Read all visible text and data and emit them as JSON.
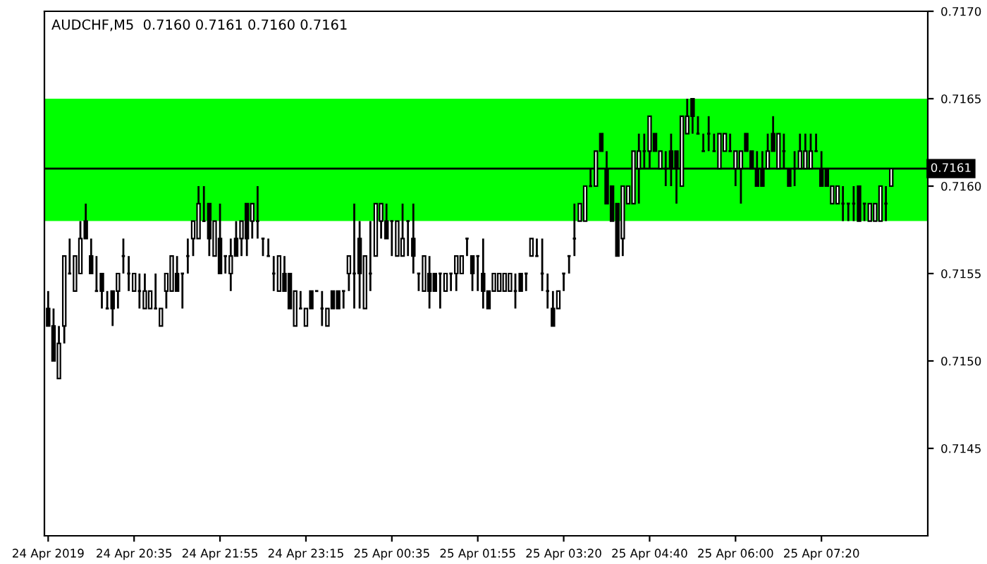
{
  "chart_data": {
    "type": "candlestick",
    "title": "AUDCHF,M5  0.7160 0.7161 0.7160 0.7161",
    "categories": [
      "24 Apr 2019",
      null,
      null,
      null,
      null,
      null,
      null,
      null,
      null,
      null,
      null,
      null,
      null,
      null,
      null,
      null,
      "24 Apr 20:35",
      null,
      null,
      null,
      null,
      null,
      null,
      null,
      null,
      null,
      null,
      null,
      null,
      null,
      null,
      null,
      "24 Apr 21:55",
      null,
      null,
      null,
      null,
      null,
      null,
      null,
      null,
      null,
      null,
      null,
      null,
      null,
      null,
      null,
      "24 Apr 23:15",
      null,
      null,
      null,
      null,
      null,
      null,
      null,
      null,
      null,
      null,
      null,
      null,
      null,
      null,
      null,
      "25 Apr 00:35",
      null,
      null,
      null,
      null,
      null,
      null,
      null,
      null,
      null,
      null,
      null,
      null,
      null,
      null,
      null,
      "25 Apr 01:55",
      null,
      null,
      null,
      null,
      null,
      null,
      null,
      null,
      null,
      null,
      null,
      null,
      null,
      null,
      null,
      "25 Apr 03:20",
      null,
      null,
      null,
      null,
      null,
      null,
      null,
      null,
      null,
      null,
      null,
      null,
      null,
      null,
      null,
      "25 Apr 04:40",
      null,
      null,
      null,
      null,
      null,
      null,
      null,
      null,
      null,
      null,
      null,
      null,
      null,
      null,
      null,
      "25 Apr 06:00",
      null,
      null,
      null,
      null,
      null,
      null,
      null,
      null,
      null,
      null,
      null,
      null,
      null,
      null,
      null,
      "25 Apr 07:20",
      null,
      null,
      null,
      null,
      null,
      null,
      null,
      null,
      null,
      null,
      null,
      null,
      null
    ],
    "ohlc": [
      [
        0.7153,
        0.7154,
        0.7152,
        0.7152
      ],
      [
        0.7152,
        0.7153,
        0.715,
        0.715
      ],
      [
        0.7149,
        0.7152,
        0.7149,
        0.7151
      ],
      [
        0.7152,
        0.7156,
        0.7151,
        0.7156
      ],
      [
        0.7155,
        0.7157,
        0.7155,
        0.7155
      ],
      [
        0.7154,
        0.7156,
        0.7154,
        0.7156
      ],
      [
        0.7155,
        0.7158,
        0.7155,
        0.7157
      ],
      [
        0.7158,
        0.7159,
        0.7157,
        0.7157
      ],
      [
        0.7156,
        0.7157,
        0.7155,
        0.7155
      ],
      [
        0.7154,
        0.7156,
        0.7154,
        0.7154
      ],
      [
        0.7155,
        0.7155,
        0.7153,
        0.7154
      ],
      [
        0.7153,
        0.7154,
        0.7153,
        0.7153
      ],
      [
        0.7154,
        0.7154,
        0.7152,
        0.7153
      ],
      [
        0.7154,
        0.7155,
        0.7153,
        0.7155
      ],
      [
        0.7156,
        0.7157,
        0.7155,
        0.7156
      ],
      [
        0.7155,
        0.7156,
        0.7154,
        0.7155
      ],
      [
        0.7154,
        0.7155,
        0.7154,
        0.7155
      ],
      [
        0.7154,
        0.7155,
        0.7153,
        0.7154
      ],
      [
        0.7153,
        0.7155,
        0.7153,
        0.7154
      ],
      [
        0.7153,
        0.7154,
        0.7153,
        0.7154
      ],
      [
        0.7153,
        0.7155,
        0.7153,
        0.7153
      ],
      [
        0.7152,
        0.7153,
        0.7152,
        0.7153
      ],
      [
        0.7154,
        0.7155,
        0.7153,
        0.7155
      ],
      [
        0.7154,
        0.7156,
        0.7154,
        0.7156
      ],
      [
        0.7155,
        0.7156,
        0.7154,
        0.7154
      ],
      [
        0.7155,
        0.7155,
        0.7153,
        0.7155
      ],
      [
        0.7156,
        0.7157,
        0.7155,
        0.7156
      ],
      [
        0.7157,
        0.7158,
        0.7156,
        0.7158
      ],
      [
        0.7157,
        0.716,
        0.7157,
        0.7159
      ],
      [
        0.7158,
        0.716,
        0.7158,
        0.7158
      ],
      [
        0.7159,
        0.7159,
        0.7156,
        0.7157
      ],
      [
        0.7156,
        0.7158,
        0.7156,
        0.7158
      ],
      [
        0.7157,
        0.7159,
        0.7155,
        0.7155
      ],
      [
        0.7156,
        0.7156,
        0.7155,
        0.7156
      ],
      [
        0.7155,
        0.7157,
        0.7154,
        0.7156
      ],
      [
        0.7157,
        0.7158,
        0.7156,
        0.7156
      ],
      [
        0.7157,
        0.7158,
        0.7156,
        0.7158
      ],
      [
        0.7159,
        0.7159,
        0.7156,
        0.7157
      ],
      [
        0.7158,
        0.7159,
        0.7157,
        0.7159
      ],
      [
        0.7158,
        0.716,
        0.7157,
        0.7158
      ],
      [
        0.7157,
        0.7157,
        0.7156,
        0.7157
      ],
      [
        0.7156,
        0.7157,
        0.7156,
        0.7156
      ],
      [
        0.7155,
        0.7156,
        0.7154,
        0.7155
      ],
      [
        0.7154,
        0.7156,
        0.7154,
        0.7156
      ],
      [
        0.7155,
        0.7156,
        0.7154,
        0.7154
      ],
      [
        0.7155,
        0.7155,
        0.7153,
        0.7153
      ],
      [
        0.7152,
        0.7154,
        0.7152,
        0.7154
      ],
      [
        0.7153,
        0.7154,
        0.7153,
        0.7153
      ],
      [
        0.7152,
        0.7153,
        0.7152,
        0.7153
      ],
      [
        0.7154,
        0.7154,
        0.7153,
        0.7153
      ],
      [
        0.7154,
        0.7154,
        0.7154,
        0.7154
      ],
      [
        0.7153,
        0.7154,
        0.7152,
        0.7153
      ],
      [
        0.7152,
        0.7153,
        0.7152,
        0.7153
      ],
      [
        0.7154,
        0.7154,
        0.7153,
        0.7153
      ],
      [
        0.7154,
        0.7154,
        0.7153,
        0.7153
      ],
      [
        0.7154,
        0.7154,
        0.7153,
        0.7154
      ],
      [
        0.7155,
        0.7156,
        0.7154,
        0.7156
      ],
      [
        0.7155,
        0.7159,
        0.7153,
        0.7155
      ],
      [
        0.7157,
        0.7158,
        0.7153,
        0.7155
      ],
      [
        0.7153,
        0.7156,
        0.7153,
        0.7156
      ],
      [
        0.7155,
        0.7158,
        0.7154,
        0.7155
      ],
      [
        0.7156,
        0.7159,
        0.7156,
        0.7159
      ],
      [
        0.7158,
        0.7159,
        0.7157,
        0.7159
      ],
      [
        0.7158,
        0.7159,
        0.7157,
        0.7157
      ],
      [
        0.7158,
        0.7158,
        0.7156,
        0.7158
      ],
      [
        0.7156,
        0.7158,
        0.7156,
        0.7158
      ],
      [
        0.7156,
        0.7159,
        0.7156,
        0.7157
      ],
      [
        0.7158,
        0.7158,
        0.7156,
        0.7158
      ],
      [
        0.7157,
        0.7159,
        0.7155,
        0.7156
      ],
      [
        0.7155,
        0.7155,
        0.7154,
        0.7155
      ],
      [
        0.7154,
        0.7156,
        0.7154,
        0.7156
      ],
      [
        0.7155,
        0.7156,
        0.7153,
        0.7154
      ],
      [
        0.7155,
        0.7155,
        0.7154,
        0.7154
      ],
      [
        0.7155,
        0.7155,
        0.7153,
        0.7155
      ],
      [
        0.7154,
        0.7155,
        0.7154,
        0.7155
      ],
      [
        0.7155,
        0.7155,
        0.7154,
        0.7155
      ],
      [
        0.7155,
        0.7156,
        0.7154,
        0.7156
      ],
      [
        0.7155,
        0.7156,
        0.7155,
        0.7156
      ],
      [
        0.7157,
        0.7157,
        0.7156,
        0.7157
      ],
      [
        0.7156,
        0.7156,
        0.7154,
        0.7155
      ],
      [
        0.7156,
        0.7156,
        0.7154,
        0.7156
      ],
      [
        0.7155,
        0.7157,
        0.7153,
        0.7154
      ],
      [
        0.7154,
        0.7154,
        0.7153,
        0.7153
      ],
      [
        0.7154,
        0.7155,
        0.7154,
        0.7155
      ],
      [
        0.7154,
        0.7155,
        0.7154,
        0.7155
      ],
      [
        0.7154,
        0.7155,
        0.7154,
        0.7155
      ],
      [
        0.7154,
        0.7155,
        0.7154,
        0.7155
      ],
      [
        0.7154,
        0.7155,
        0.7153,
        0.7154
      ],
      [
        0.7155,
        0.7155,
        0.7154,
        0.7154
      ],
      [
        0.7155,
        0.7155,
        0.7154,
        0.7155
      ],
      [
        0.7156,
        0.7157,
        0.7156,
        0.7157
      ],
      [
        0.7156,
        0.7157,
        0.7156,
        0.7156
      ],
      [
        0.7155,
        0.7157,
        0.7154,
        0.7155
      ],
      [
        0.7154,
        0.7155,
        0.7153,
        0.7154
      ],
      [
        0.7153,
        0.7154,
        0.7152,
        0.7152
      ],
      [
        0.7153,
        0.7154,
        0.7153,
        0.7154
      ],
      [
        0.7155,
        0.7155,
        0.7154,
        0.7155
      ],
      [
        0.7156,
        0.7156,
        0.7155,
        0.7156
      ],
      [
        0.7157,
        0.7159,
        0.7156,
        0.7157
      ],
      [
        0.7158,
        0.7159,
        0.7158,
        0.7159
      ],
      [
        0.7158,
        0.716,
        0.7158,
        0.716
      ],
      [
        0.716,
        0.7161,
        0.716,
        0.716
      ],
      [
        0.716,
        0.7162,
        0.716,
        0.7162
      ],
      [
        0.7163,
        0.7163,
        0.7162,
        0.7162
      ],
      [
        0.7161,
        0.7162,
        0.7159,
        0.7159
      ],
      [
        0.716,
        0.716,
        0.7158,
        0.7158
      ],
      [
        0.7159,
        0.7159,
        0.7156,
        0.7156
      ],
      [
        0.7157,
        0.716,
        0.7156,
        0.716
      ],
      [
        0.7159,
        0.716,
        0.7159,
        0.716
      ],
      [
        0.7159,
        0.7162,
        0.7159,
        0.7162
      ],
      [
        0.7161,
        0.7163,
        0.7159,
        0.7162
      ],
      [
        0.7162,
        0.7163,
        0.7161,
        0.7162
      ],
      [
        0.7162,
        0.7164,
        0.7161,
        0.7164
      ],
      [
        0.7163,
        0.7163,
        0.7162,
        0.7162
      ],
      [
        0.7161,
        0.7162,
        0.7161,
        0.7162
      ],
      [
        0.7161,
        0.7162,
        0.716,
        0.7161
      ],
      [
        0.7162,
        0.7163,
        0.716,
        0.7161
      ],
      [
        0.7162,
        0.7162,
        0.7159,
        0.7161
      ],
      [
        0.716,
        0.7164,
        0.716,
        0.7164
      ],
      [
        0.7163,
        0.7165,
        0.7163,
        0.7164
      ],
      [
        0.7165,
        0.7165,
        0.7163,
        0.7164
      ],
      [
        0.7163,
        0.7164,
        0.7163,
        0.7163
      ],
      [
        0.7162,
        0.7163,
        0.7162,
        0.7162
      ],
      [
        0.7163,
        0.7164,
        0.7162,
        0.7163
      ],
      [
        0.7162,
        0.7163,
        0.7162,
        0.7162
      ],
      [
        0.7161,
        0.7163,
        0.7161,
        0.7163
      ],
      [
        0.7162,
        0.7163,
        0.7162,
        0.7163
      ],
      [
        0.7162,
        0.7163,
        0.7162,
        0.7162
      ],
      [
        0.7161,
        0.7162,
        0.716,
        0.7162
      ],
      [
        0.7161,
        0.7162,
        0.7159,
        0.7162
      ],
      [
        0.7163,
        0.7163,
        0.7162,
        0.7162
      ],
      [
        0.7162,
        0.7162,
        0.7161,
        0.7161
      ],
      [
        0.7161,
        0.7162,
        0.716,
        0.716
      ],
      [
        0.7161,
        0.7162,
        0.716,
        0.716
      ],
      [
        0.7161,
        0.7163,
        0.7161,
        0.7162
      ],
      [
        0.7163,
        0.7164,
        0.7162,
        0.7162
      ],
      [
        0.7161,
        0.7163,
        0.7161,
        0.7163
      ],
      [
        0.7162,
        0.7163,
        0.7161,
        0.7162
      ],
      [
        0.7161,
        0.7161,
        0.716,
        0.716
      ],
      [
        0.7161,
        0.7162,
        0.716,
        0.7161
      ],
      [
        0.7161,
        0.7163,
        0.7161,
        0.7162
      ],
      [
        0.7161,
        0.7163,
        0.7161,
        0.7162
      ],
      [
        0.7161,
        0.7163,
        0.7161,
        0.7162
      ],
      [
        0.7162,
        0.7163,
        0.7162,
        0.7162
      ],
      [
        0.7161,
        0.7162,
        0.716,
        0.716
      ],
      [
        0.7161,
        0.7161,
        0.716,
        0.716
      ],
      [
        0.7159,
        0.716,
        0.7159,
        0.716
      ],
      [
        0.7159,
        0.716,
        0.7159,
        0.716
      ],
      [
        0.7159,
        0.716,
        0.7158,
        0.7159
      ],
      [
        0.7159,
        0.7159,
        0.7158,
        0.7159
      ],
      [
        0.7159,
        0.716,
        0.7158,
        0.7159
      ],
      [
        0.716,
        0.716,
        0.7158,
        0.7158
      ],
      [
        0.7159,
        0.7159,
        0.7158,
        0.7159
      ],
      [
        0.7158,
        0.7159,
        0.7158,
        0.7159
      ],
      [
        0.7158,
        0.7159,
        0.7158,
        0.7159
      ],
      [
        0.7158,
        0.716,
        0.7158,
        0.716
      ],
      [
        0.7159,
        0.716,
        0.7158,
        0.7159
      ],
      [
        0.716,
        0.7161,
        0.716,
        0.7161
      ]
    ],
    "ylim": [
      0.714,
      0.717
    ],
    "yticks": [
      0.7145,
      {
        "value": 0.715,
        "label": "0.7150"
      },
      0.7155,
      {
        "value": 0.716,
        "label": "0.7160"
      },
      0.7165,
      {
        "value": 0.717,
        "label": "0.7170"
      }
    ],
    "ref_lines": [
      {
        "axis": "y",
        "value": 0.7161,
        "label": "0.7161",
        "color": "#000000"
      }
    ],
    "bands": [
      {
        "axis": "y",
        "from": 0.7158,
        "to": 0.7165,
        "color": "#00ff00"
      }
    ],
    "grid": false,
    "legend": false
  }
}
